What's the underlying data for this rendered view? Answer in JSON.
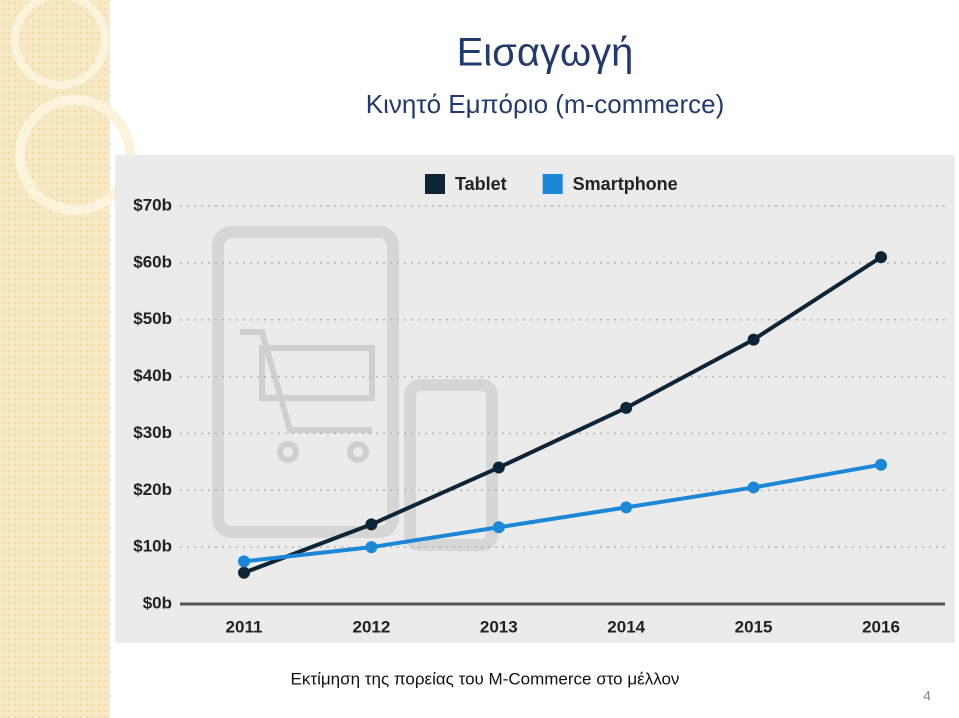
{
  "slide": {
    "title": "Εισαγωγή",
    "subtitle": "Κινητό Εμπόριο (m-commerce)",
    "caption": "Εκτίμηση της πορείας του M-Commerce στο μέλλον",
    "page_number": "4"
  },
  "chart_data": {
    "type": "line",
    "categories": [
      "2011",
      "2012",
      "2013",
      "2014",
      "2015",
      "2016"
    ],
    "series": [
      {
        "name": "Tablet",
        "color": "#0d2436",
        "values": [
          5.5,
          14,
          24,
          34.5,
          46.5,
          61
        ]
      },
      {
        "name": "Smartphone",
        "color": "#1b87d6",
        "values": [
          7.5,
          10,
          13.5,
          17,
          20.5,
          24.5
        ]
      }
    ],
    "ylim": [
      0,
      70
    ],
    "yticks": [
      {
        "value": 0,
        "label": "$0b"
      },
      {
        "value": 10,
        "label": "$10b"
      },
      {
        "value": 20,
        "label": "$20b"
      },
      {
        "value": 30,
        "label": "$30b"
      },
      {
        "value": 40,
        "label": "$40b"
      },
      {
        "value": 50,
        "label": "$50b"
      },
      {
        "value": 60,
        "label": "$60b"
      },
      {
        "value": 70,
        "label": "$70b"
      }
    ],
    "grid": true,
    "legend": "top"
  }
}
